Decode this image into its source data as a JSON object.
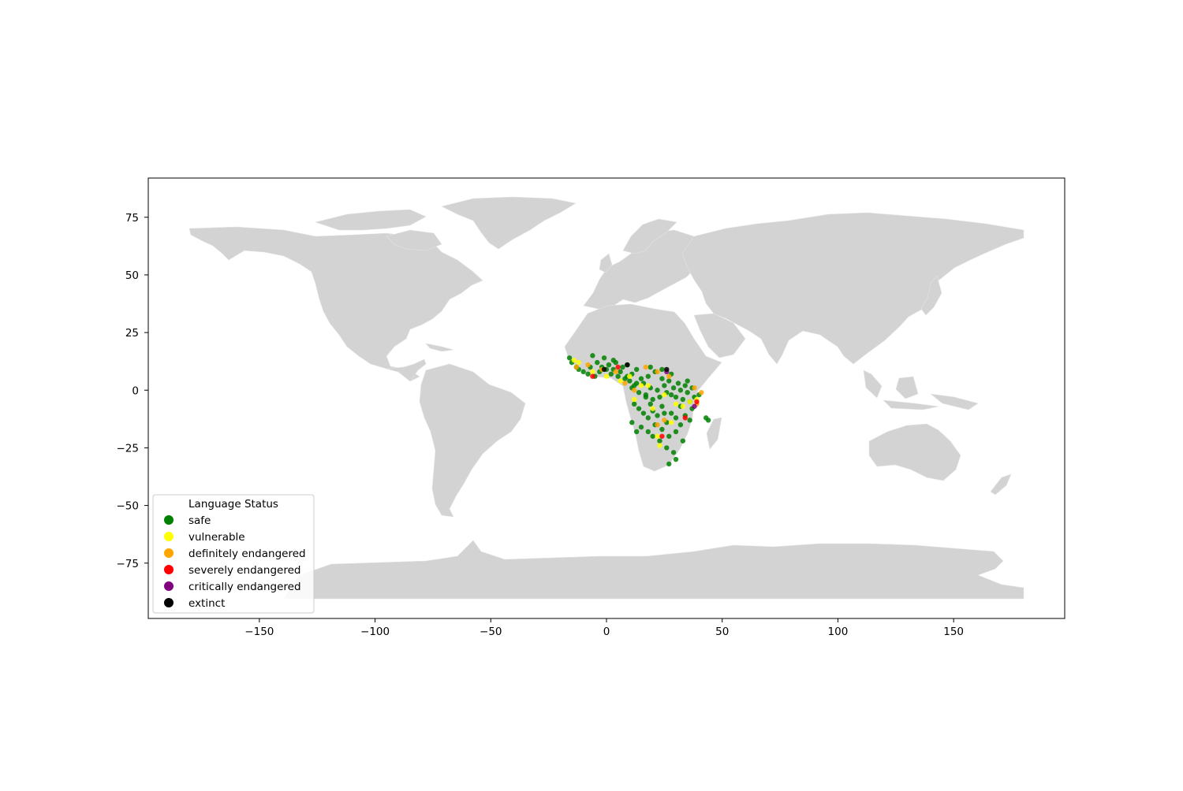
{
  "chart_data": {
    "type": "scatter",
    "title": "",
    "xlabel": "",
    "ylabel": "",
    "xlim": [
      -198,
      198
    ],
    "ylim": [
      -99,
      92
    ],
    "x_ticks": [
      -150,
      -100,
      -50,
      0,
      50,
      100,
      150
    ],
    "y_ticks": [
      75,
      50,
      25,
      0,
      -25,
      -50,
      -75
    ],
    "x_tick_labels": [
      "−150",
      "−100",
      "−50",
      "0",
      "50",
      "100",
      "150"
    ],
    "y_tick_labels": [
      "75",
      "50",
      "25",
      "0",
      "−25",
      "−50",
      "−75"
    ],
    "basemap_color": "#d3d3d3",
    "grid": false,
    "legend": {
      "title": "Language Status",
      "placement": "lower-left",
      "entries": [
        {
          "label": "safe",
          "color": "#008000"
        },
        {
          "label": "vulnerable",
          "color": "#ffff00"
        },
        {
          "label": "definitely endangered",
          "color": "#ffa500"
        },
        {
          "label": "severely endangered",
          "color": "#ff0000"
        },
        {
          "label": "critically endangered",
          "color": "#800080"
        },
        {
          "label": "extinct",
          "color": "#000000"
        }
      ]
    },
    "series": [
      {
        "name": "safe",
        "color": "#008000",
        "points": [
          [
            -16,
            14
          ],
          [
            -15,
            12
          ],
          [
            -13,
            10
          ],
          [
            -12,
            9
          ],
          [
            -10,
            8
          ],
          [
            -8,
            7
          ],
          [
            -7,
            10
          ],
          [
            -5,
            6
          ],
          [
            -4,
            12
          ],
          [
            -3,
            8
          ],
          [
            -2,
            10
          ],
          [
            0,
            9
          ],
          [
            1,
            11
          ],
          [
            2,
            7
          ],
          [
            3,
            9
          ],
          [
            4,
            12
          ],
          [
            5,
            6
          ],
          [
            6,
            8
          ],
          [
            7,
            10
          ],
          [
            8,
            5
          ],
          [
            9,
            11
          ],
          [
            10,
            4
          ],
          [
            11,
            7
          ],
          [
            12,
            2
          ],
          [
            13,
            9
          ],
          [
            14,
            -1
          ],
          [
            15,
            5
          ],
          [
            16,
            3
          ],
          [
            17,
            -2
          ],
          [
            18,
            6
          ],
          [
            19,
            1
          ],
          [
            20,
            -4
          ],
          [
            21,
            8
          ],
          [
            22,
            0
          ],
          [
            23,
            -3
          ],
          [
            24,
            5
          ],
          [
            25,
            2
          ],
          [
            26,
            -1
          ],
          [
            27,
            4
          ],
          [
            28,
            -2
          ],
          [
            29,
            1
          ],
          [
            30,
            -3
          ],
          [
            31,
            3
          ],
          [
            32,
            0
          ],
          [
            33,
            -4
          ],
          [
            34,
            2
          ],
          [
            35,
            -1
          ],
          [
            36,
            -5
          ],
          [
            37,
            1
          ],
          [
            38,
            -3
          ],
          [
            12,
            -6
          ],
          [
            14,
            -8
          ],
          [
            16,
            -10
          ],
          [
            18,
            -12
          ],
          [
            20,
            -9
          ],
          [
            22,
            -11
          ],
          [
            24,
            -7
          ],
          [
            26,
            -14
          ],
          [
            28,
            -10
          ],
          [
            30,
            -12
          ],
          [
            32,
            -15
          ],
          [
            34,
            -11
          ],
          [
            36,
            -13
          ],
          [
            15,
            -16
          ],
          [
            18,
            -18
          ],
          [
            21,
            -15
          ],
          [
            24,
            -17
          ],
          [
            27,
            -20
          ],
          [
            30,
            -18
          ],
          [
            33,
            -22
          ],
          [
            26,
            -25
          ],
          [
            29,
            -27
          ],
          [
            27,
            -32
          ],
          [
            30,
            -30
          ],
          [
            43,
            -12
          ],
          [
            44,
            -13
          ],
          [
            11,
            -14
          ],
          [
            13,
            -18
          ],
          [
            20,
            -20
          ],
          [
            23,
            -22
          ],
          [
            25,
            -10
          ],
          [
            19,
            -6
          ],
          [
            17,
            -3
          ],
          [
            11,
            1
          ],
          [
            13,
            3
          ],
          [
            9,
            6
          ],
          [
            -1,
            14
          ],
          [
            -6,
            15
          ],
          [
            3,
            13
          ],
          [
            19,
            10
          ],
          [
            24,
            9
          ],
          [
            28,
            7
          ],
          [
            35,
            4
          ],
          [
            40,
            -2
          ],
          [
            37,
            -8
          ],
          [
            32,
            -7
          ]
        ]
      },
      {
        "name": "vulnerable",
        "color": "#ffff00",
        "points": [
          [
            -14,
            13
          ],
          [
            -12,
            12
          ],
          [
            -6,
            8
          ],
          [
            0,
            6
          ],
          [
            6,
            4
          ],
          [
            10,
            6
          ],
          [
            15,
            2
          ],
          [
            18,
            2
          ],
          [
            25,
            -2
          ],
          [
            30,
            -6
          ],
          [
            33,
            -7
          ],
          [
            36,
            -5
          ],
          [
            39,
            -4
          ],
          [
            22,
            -20
          ],
          [
            23,
            -24
          ],
          [
            20,
            -8
          ],
          [
            12,
            -4
          ],
          [
            28,
            -14
          ]
        ]
      },
      {
        "name": "definitely endangered",
        "color": "#ffa500",
        "points": [
          [
            -13,
            10
          ],
          [
            -8,
            11
          ],
          [
            -2,
            9
          ],
          [
            4,
            8
          ],
          [
            8,
            3
          ],
          [
            12,
            0
          ],
          [
            17,
            10
          ],
          [
            22,
            8
          ],
          [
            27,
            6
          ],
          [
            38,
            1
          ],
          [
            41,
            -1
          ],
          [
            39,
            -6
          ],
          [
            22,
            -15
          ],
          [
            25,
            -13
          ]
        ]
      },
      {
        "name": "severely endangered",
        "color": "#ff0000",
        "points": [
          [
            -6,
            6
          ],
          [
            5,
            10
          ],
          [
            24,
            -20
          ],
          [
            34,
            -12
          ],
          [
            39,
            -5
          ]
        ]
      },
      {
        "name": "critically endangered",
        "color": "#800080",
        "points": [
          [
            38,
            -7
          ],
          [
            26,
            8
          ]
        ]
      },
      {
        "name": "extinct",
        "color": "#000000",
        "points": [
          [
            9,
            11
          ],
          [
            26,
            9
          ],
          [
            -1,
            9
          ]
        ]
      }
    ]
  }
}
